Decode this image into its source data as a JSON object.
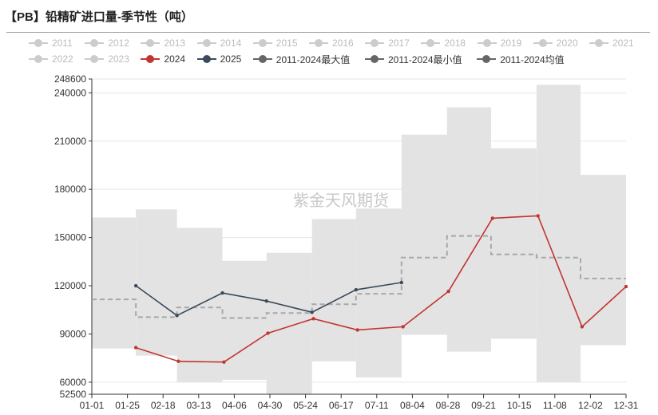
{
  "title": "【PB】铅精矿进口量-季节性（吨）",
  "watermark": "紫金天风期货",
  "colors": {
    "inactive": "#cccccc",
    "band": "#e3e3e3",
    "s2024": "#c23531",
    "s2025": "#3b4a5c",
    "avg": "#a8a8a8",
    "maxmin": "#666666"
  },
  "legend": [
    {
      "label": "2011",
      "active": false,
      "color": "#cccccc",
      "row": 0
    },
    {
      "label": "2012",
      "active": false,
      "color": "#cccccc",
      "row": 0
    },
    {
      "label": "2013",
      "active": false,
      "color": "#cccccc",
      "row": 0
    },
    {
      "label": "2014",
      "active": false,
      "color": "#cccccc",
      "row": 0
    },
    {
      "label": "2015",
      "active": false,
      "color": "#cccccc",
      "row": 0
    },
    {
      "label": "2016",
      "active": false,
      "color": "#cccccc",
      "row": 0
    },
    {
      "label": "2017",
      "active": false,
      "color": "#cccccc",
      "row": 0
    },
    {
      "label": "2018",
      "active": false,
      "color": "#cccccc",
      "row": 0
    },
    {
      "label": "2019",
      "active": false,
      "color": "#cccccc",
      "row": 0
    },
    {
      "label": "2020",
      "active": false,
      "color": "#cccccc",
      "row": 0
    },
    {
      "label": "2021",
      "active": false,
      "color": "#cccccc",
      "row": 0
    },
    {
      "label": "2022",
      "active": false,
      "color": "#cccccc",
      "row": 1
    },
    {
      "label": "2023",
      "active": false,
      "color": "#cccccc",
      "row": 1
    },
    {
      "label": "2024",
      "active": true,
      "color": "#c23531",
      "row": 1
    },
    {
      "label": "2025",
      "active": true,
      "color": "#3b4a5c",
      "row": 1
    },
    {
      "label": "2011-2024最大值",
      "active": true,
      "color": "#666666",
      "row": 1
    },
    {
      "label": "2011-2024最小值",
      "active": true,
      "color": "#666666",
      "row": 1
    },
    {
      "label": "2011-2024均值",
      "active": true,
      "color": "#666666",
      "row": 1
    }
  ],
  "chart_data": {
    "type": "line",
    "title": "【PB】铅精矿进口量-季节性（吨）",
    "ylim": [
      52500,
      248600
    ],
    "yticks": [
      52500,
      60000,
      90000,
      120000,
      150000,
      180000,
      210000,
      240000,
      248600
    ],
    "xticks": [
      "01-01",
      "01-25",
      "02-18",
      "03-13",
      "04-06",
      "04-30",
      "05-24",
      "06-17",
      "07-11",
      "08-04",
      "08-28",
      "09-21",
      "10-15",
      "11-08",
      "12-02",
      "12-31"
    ],
    "xdomain": [
      1,
      365
    ],
    "legend_position": "top",
    "grid": true,
    "band": {
      "name_max": "2011-2024最大值",
      "name_min": "2011-2024最小值",
      "segments": [
        {
          "x0": 1,
          "x1": 31,
          "max": 162500,
          "min": 81000
        },
        {
          "x0": 31,
          "x1": 59,
          "max": 167500,
          "min": 76500
        },
        {
          "x0": 59,
          "x1": 90,
          "max": 156000,
          "min": 60000
        },
        {
          "x0": 90,
          "x1": 120,
          "max": 135500,
          "min": 61500
        },
        {
          "x0": 120,
          "x1": 151,
          "max": 140500,
          "min": 52500
        },
        {
          "x0": 151,
          "x1": 181,
          "max": 161500,
          "min": 73000
        },
        {
          "x0": 181,
          "x1": 212,
          "max": 168000,
          "min": 63000
        },
        {
          "x0": 212,
          "x1": 243,
          "max": 214000,
          "min": 89500
        },
        {
          "x0": 243,
          "x1": 273,
          "max": 231000,
          "min": 79000
        },
        {
          "x0": 273,
          "x1": 304,
          "max": 205500,
          "min": 87000
        },
        {
          "x0": 304,
          "x1": 334,
          "max": 245000,
          "min": 60000
        },
        {
          "x0": 334,
          "x1": 365,
          "max": 189000,
          "min": 83000
        }
      ]
    },
    "series": [
      {
        "name": "2011-2024均值",
        "style": "dashed-step",
        "steps": [
          {
            "x0": 1,
            "x1": 31,
            "y": 111500
          },
          {
            "x0": 31,
            "x1": 59,
            "y": 100500
          },
          {
            "x0": 59,
            "x1": 90,
            "y": 106500
          },
          {
            "x0": 90,
            "x1": 120,
            "y": 100000
          },
          {
            "x0": 120,
            "x1": 151,
            "y": 103000
          },
          {
            "x0": 151,
            "x1": 181,
            "y": 108500
          },
          {
            "x0": 181,
            "x1": 212,
            "y": 115000
          },
          {
            "x0": 212,
            "x1": 243,
            "y": 137500
          },
          {
            "x0": 243,
            "x1": 273,
            "y": 151000
          },
          {
            "x0": 273,
            "x1": 304,
            "y": 139500
          },
          {
            "x0": 304,
            "x1": 334,
            "y": 137500
          },
          {
            "x0": 334,
            "x1": 365,
            "y": 124500
          }
        ]
      },
      {
        "name": "2024",
        "x": [
          31,
          60,
          91,
          121,
          152,
          182,
          213,
          244,
          274,
          305,
          335,
          365
        ],
        "values": [
          81500,
          73000,
          72500,
          90500,
          99500,
          92500,
          94500,
          116500,
          162000,
          163500,
          94500,
          119500
        ]
      },
      {
        "name": "2025",
        "x": [
          31,
          59,
          90,
          120,
          151,
          181,
          212
        ],
        "values": [
          120000,
          101500,
          115500,
          110500,
          103500,
          117500,
          122000
        ]
      }
    ]
  }
}
